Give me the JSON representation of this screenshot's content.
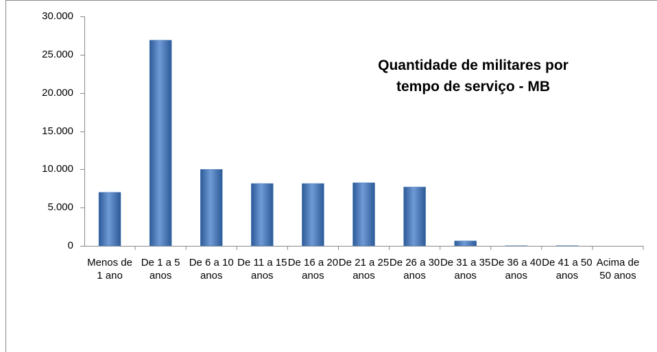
{
  "chart_data": {
    "type": "bar",
    "title": "Quantidade de militares por tempo de serviço - MB",
    "categories": [
      "Menos de 1 ano",
      "De 1 a 5 anos",
      "De 6 a 10 anos",
      "De 11 a 15 anos",
      "De 16 a 20 anos",
      "De 21 a 25 anos",
      "De 26 a 30 anos",
      "De 31 a 35 anos",
      "De 36 a 40 anos",
      "De 41 a 50 anos",
      "Acima de 50 anos"
    ],
    "values": [
      7000,
      26900,
      10000,
      8150,
      8150,
      8250,
      7700,
      650,
      20,
      30,
      0
    ],
    "color": "#4f81bd",
    "ylim": [
      0,
      30000
    ],
    "yticks": [
      0,
      {
        "value": 5000,
        "label": "5.000"
      },
      {
        "value": 10000,
        "label": "10.000"
      },
      {
        "value": 15000,
        "label": "15.000"
      },
      {
        "value": 20000,
        "label": "20.000"
      },
      {
        "value": 25000,
        "label": "25.000"
      },
      {
        "value": 30000,
        "label": "30.000"
      }
    ],
    "grid": false
  }
}
